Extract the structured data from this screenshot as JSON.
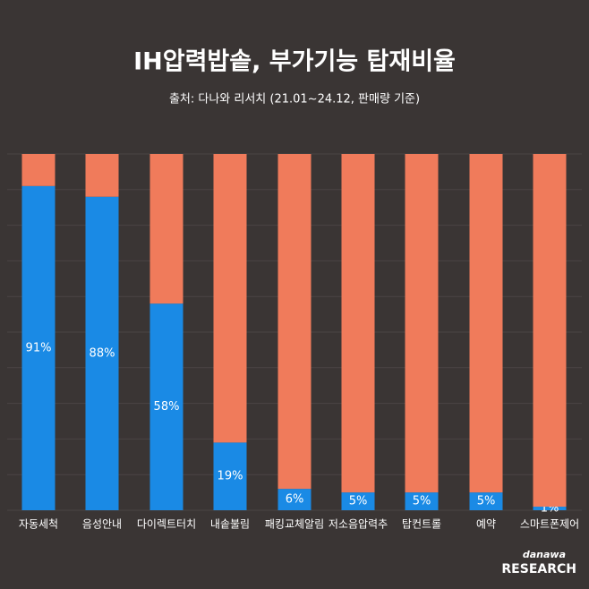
{
  "chart_data": {
    "type": "stacked_bar_100",
    "title": "IH압력밥솥, 부가기능 탑재비율",
    "subtitle": "출처: 다나와 리서치 (21.01~24.12, 판매량 기준)",
    "categories": [
      "자동세척",
      "음성안내",
      "다이렉트터치",
      "내솥불림",
      "패킹교체알림",
      "저소음압력추",
      "탑컨트롤",
      "예약",
      "스마트폰제어"
    ],
    "series": [
      {
        "color": "#1a8ae5",
        "values": [
          91,
          88,
          58,
          19,
          6,
          5,
          5,
          5,
          1
        ],
        "value_labels": [
          "91%",
          "88%",
          "58%",
          "19%",
          "6%",
          "5%",
          "5%",
          "5%",
          "1%"
        ]
      },
      {
        "color": "#f07b5b",
        "values": [
          9,
          12,
          42,
          81,
          94,
          95,
          95,
          95,
          99
        ]
      }
    ],
    "ylim": [
      0,
      100
    ],
    "yticks": [
      0,
      10,
      20,
      30,
      40,
      50,
      60,
      70,
      80,
      90,
      100
    ],
    "grid": true,
    "logo": {
      "top": "danawa",
      "bottom": "RESEARCH"
    }
  }
}
